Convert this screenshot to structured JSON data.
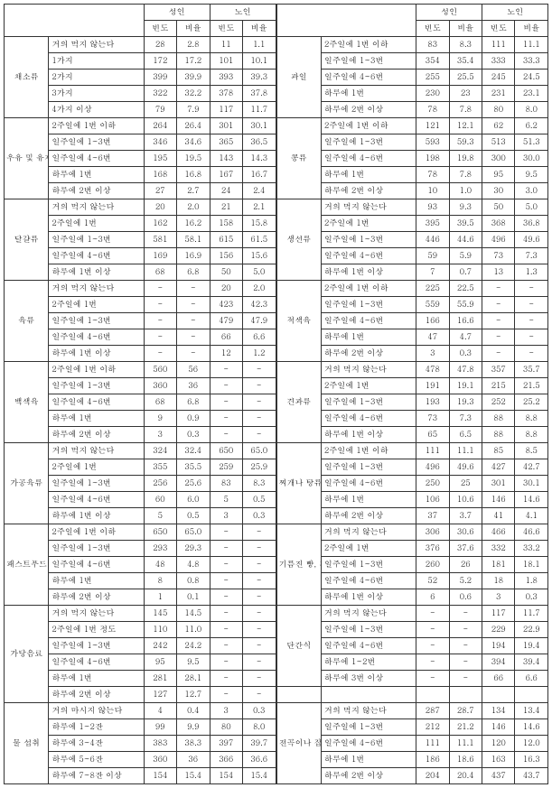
{
  "headers": {
    "adult": "성인",
    "elderly": "노인",
    "freq": "빈도",
    "ratio": "비율"
  },
  "L": [
    {
      "cat": "채소류",
      "rows": [
        {
          "l": "거의 먹지 않는다",
          "v": [
            "28",
            "2.8",
            "11",
            "1.1"
          ]
        },
        {
          "l": "1가지",
          "v": [
            "172",
            "17.2",
            "101",
            "10.1"
          ]
        },
        {
          "l": "2가지",
          "v": [
            "399",
            "39.9",
            "393",
            "39.3"
          ]
        },
        {
          "l": "3가지",
          "v": [
            "322",
            "32.2",
            "378",
            "37.8"
          ]
        },
        {
          "l": "4가지 이상",
          "v": [
            "79",
            "7.9",
            "117",
            "11.7"
          ]
        }
      ]
    },
    {
      "cat": "우유 및 유제품",
      "rows": [
        {
          "l": "2주일에 1번 이하",
          "v": [
            "264",
            "26.4",
            "301",
            "30.1"
          ]
        },
        {
          "l": "일주일에 1~3번",
          "v": [
            "346",
            "34.6",
            "365",
            "36.5"
          ]
        },
        {
          "l": "일주일에 4~6번",
          "v": [
            "195",
            "19.5",
            "143",
            "14.3"
          ]
        },
        {
          "l": "하루에 1번",
          "v": [
            "168",
            "16.8",
            "167",
            "16.7"
          ]
        },
        {
          "l": "하루에 2번 이상",
          "v": [
            "27",
            "2.7",
            "24",
            "2.4"
          ]
        }
      ]
    },
    {
      "cat": "달걀류",
      "rows": [
        {
          "l": "거의 먹지 않는다",
          "v": [
            "20",
            "2.0",
            "21",
            "2.1"
          ]
        },
        {
          "l": "2주일에 1번",
          "v": [
            "162",
            "16.2",
            "158",
            "15.8"
          ]
        },
        {
          "l": "일주일에 1~3번",
          "v": [
            "581",
            "58.1",
            "615",
            "61.5"
          ]
        },
        {
          "l": "일주일에 4~6번",
          "v": [
            "169",
            "16.9",
            "156",
            "15.6"
          ]
        },
        {
          "l": "하루에 1번 이상",
          "v": [
            "68",
            "6.8",
            "50",
            "5.0"
          ]
        }
      ]
    },
    {
      "cat": "육류",
      "rows": [
        {
          "l": "거의 먹지 않는다",
          "v": [
            "-",
            "-",
            "20",
            "2.0"
          ]
        },
        {
          "l": "2주일에 1번",
          "v": [
            "-",
            "-",
            "423",
            "42.3"
          ]
        },
        {
          "l": "일주일에 1~3번",
          "v": [
            "-",
            "-",
            "479",
            "47.9"
          ]
        },
        {
          "l": "일주일에 4~6번",
          "v": [
            "-",
            "-",
            "66",
            "6.6"
          ]
        },
        {
          "l": "하루에 1번 이상",
          "v": [
            "-",
            "-",
            "12",
            "1.2"
          ]
        }
      ]
    },
    {
      "cat": "백색육",
      "rows": [
        {
          "l": "2주일에 1번 이하",
          "v": [
            "560",
            "56",
            "-",
            "-"
          ]
        },
        {
          "l": "일주일에 1~3번",
          "v": [
            "360",
            "36",
            "-",
            "-"
          ]
        },
        {
          "l": "일주일에 4~6번",
          "v": [
            "68",
            "6.8",
            "-",
            "-"
          ]
        },
        {
          "l": "하루에 1번",
          "v": [
            "9",
            "0.9",
            "-",
            "-"
          ]
        },
        {
          "l": "하루에 2번 이상",
          "v": [
            "3",
            "0.3",
            "-",
            "-"
          ]
        }
      ]
    },
    {
      "cat": "가공육류",
      "rows": [
        {
          "l": "거의 먹지 않는다",
          "v": [
            "324",
            "32.4",
            "650",
            "65.0"
          ]
        },
        {
          "l": "2주일에 1번",
          "v": [
            "355",
            "35.5",
            "259",
            "25.9"
          ]
        },
        {
          "l": "일주일에 1~3번",
          "v": [
            "256",
            "25.6",
            "83",
            "8.3"
          ]
        },
        {
          "l": "일주일에 4~6번",
          "v": [
            "60",
            "6.0",
            "5",
            "0.5"
          ]
        },
        {
          "l": "하루에 1번 이상",
          "v": [
            "5",
            "0.5",
            "3",
            "0.3"
          ]
        }
      ]
    },
    {
      "cat": "패스트푸드",
      "rows": [
        {
          "l": "2주일에 1번 이하",
          "v": [
            "650",
            "65.0",
            "-",
            "-"
          ]
        },
        {
          "l": "일주일에 1~3번",
          "v": [
            "293",
            "29.3",
            "-",
            "-"
          ]
        },
        {
          "l": "일주일에 4~6번",
          "v": [
            "48",
            "4.8",
            "-",
            "-"
          ]
        },
        {
          "l": "하루에 1번",
          "v": [
            "8",
            "0.8",
            "-",
            "-"
          ]
        },
        {
          "l": "하루에 2번 이상",
          "v": [
            "1",
            "0.1",
            "-",
            "-"
          ]
        }
      ]
    },
    {
      "cat": "가당음료",
      "rows": [
        {
          "l": "거의 먹지 않는다",
          "v": [
            "145",
            "14.5",
            "-",
            "-"
          ]
        },
        {
          "l": "2주일에 1번 정도",
          "v": [
            "110",
            "11.0",
            "-",
            "-"
          ]
        },
        {
          "l": "일주일에 1~3번",
          "v": [
            "242",
            "24.2",
            "-",
            "-"
          ]
        },
        {
          "l": "일주일에 4~6번",
          "v": [
            "95",
            "9.5",
            "-",
            "-"
          ]
        },
        {
          "l": "하루에 1번",
          "v": [
            "281",
            "28.1",
            "-",
            "-"
          ]
        },
        {
          "l": "하루에 2번 이상",
          "v": [
            "127",
            "12.7",
            "-",
            "-"
          ]
        }
      ]
    },
    {
      "cat": "물 섭취",
      "rows": [
        {
          "l": "거의 마시지 않는다",
          "v": [
            "4",
            "0.4",
            "3",
            "0.3"
          ]
        },
        {
          "l": "하루에 1~2잔",
          "v": [
            "99",
            "9.9",
            "80",
            "8.0"
          ]
        },
        {
          "l": "하루에 3~4잔",
          "v": [
            "383",
            "38.3",
            "397",
            "39.7"
          ]
        },
        {
          "l": "하루에 5~6잔",
          "v": [
            "360",
            "36",
            "366",
            "36.6"
          ]
        },
        {
          "l": "하루에 7~8잔 이상",
          "v": [
            "154",
            "15.4",
            "154",
            "15.4"
          ]
        }
      ]
    }
  ],
  "R": [
    {
      "cat": "과일",
      "rows": [
        {
          "l": "2주일에 1번 이하",
          "v": [
            "83",
            "8.3",
            "111",
            "11.1"
          ]
        },
        {
          "l": "일주일에 1~3번",
          "v": [
            "354",
            "35.4",
            "333",
            "33.3"
          ]
        },
        {
          "l": "일주일에 4~6번",
          "v": [
            "255",
            "25.5",
            "245",
            "24.5"
          ]
        },
        {
          "l": "하루에 1번",
          "v": [
            "230",
            "23",
            "231",
            "23.1"
          ]
        },
        {
          "l": "하루에 2번 이상",
          "v": [
            "78",
            "7.8",
            "80",
            "8.0"
          ]
        }
      ]
    },
    {
      "cat": "콩류",
      "rows": [
        {
          "l": "2주일에 1번 이하",
          "v": [
            "121",
            "12.1",
            "62",
            "6.2"
          ]
        },
        {
          "l": "일주일에 1~3번",
          "v": [
            "593",
            "59.3",
            "513",
            "51.3"
          ]
        },
        {
          "l": "일주일에 4~6번",
          "v": [
            "198",
            "19.8",
            "300",
            "30.0"
          ]
        },
        {
          "l": "하루에 1번",
          "v": [
            "78",
            "7.8",
            "95",
            "9.5"
          ]
        },
        {
          "l": "하루에 2번 이상",
          "v": [
            "10",
            "1.0",
            "30",
            "3.0"
          ]
        }
      ]
    },
    {
      "cat": "생선류",
      "rows": [
        {
          "l": "거의 먹지 않는다",
          "v": [
            "93",
            "9.3",
            "50",
            "5.0"
          ]
        },
        {
          "l": "2주일에 1번",
          "v": [
            "395",
            "39.5",
            "368",
            "36.8"
          ]
        },
        {
          "l": "일주일에 1~3번",
          "v": [
            "446",
            "44.6",
            "496",
            "49.6"
          ]
        },
        {
          "l": "일주일에 4~6번",
          "v": [
            "59",
            "5.9",
            "73",
            "7.3"
          ]
        },
        {
          "l": "하루에 1번 이상",
          "v": [
            "7",
            "0.7",
            "13",
            "1.3"
          ]
        }
      ]
    },
    {
      "cat": "적색육",
      "rows": [
        {
          "l": "2주일에 1번 이하",
          "v": [
            "225",
            "22.5",
            "-",
            "-"
          ]
        },
        {
          "l": "일주일에 1~3번",
          "v": [
            "559",
            "55.9",
            "-",
            "-"
          ]
        },
        {
          "l": "일주일에 4~6번",
          "v": [
            "166",
            "16.6",
            "-",
            "-"
          ]
        },
        {
          "l": "하루에 1번",
          "v": [
            "47",
            "4.7",
            "-",
            "-"
          ]
        },
        {
          "l": "하루에 2번 이상",
          "v": [
            "3",
            "0.3",
            "-",
            "-"
          ]
        }
      ]
    },
    {
      "cat": "견과류",
      "rows": [
        {
          "l": "거의 먹지 않는다",
          "v": [
            "478",
            "47.8",
            "357",
            "35.7"
          ]
        },
        {
          "l": "2주일에 1번",
          "v": [
            "191",
            "19.1",
            "215",
            "21.5"
          ]
        },
        {
          "l": "일주일에 1~3번",
          "v": [
            "193",
            "19.3",
            "252",
            "25.2"
          ]
        },
        {
          "l": "일주일에 4~6번",
          "v": [
            "73",
            "7.3",
            "88",
            "8.8"
          ]
        },
        {
          "l": "하루에 1번 이상",
          "v": [
            "65",
            "6.5",
            "88",
            "8.8"
          ]
        }
      ]
    },
    {
      "cat": "찌개나 탕류",
      "rows": [
        {
          "l": "2주일에 1번 이하",
          "v": [
            "111",
            "11.1",
            "85",
            "8.5"
          ]
        },
        {
          "l": "일주일에 1~3번",
          "v": [
            "496",
            "49.6",
            "427",
            "42.7"
          ]
        },
        {
          "l": "일주일에 4~6번",
          "v": [
            "250",
            "25",
            "301",
            "30.1"
          ]
        },
        {
          "l": "하루에 1번",
          "v": [
            "106",
            "10.6",
            "146",
            "14.6"
          ]
        },
        {
          "l": "하루에 2번 이상",
          "v": [
            "37",
            "3.7",
            "41",
            "4.1"
          ]
        }
      ]
    },
    {
      "cat": "기름진 빵, 과자류",
      "rows": [
        {
          "l": "거의 먹지 않는다",
          "v": [
            "306",
            "30.6",
            "466",
            "46.6"
          ]
        },
        {
          "l": "2주일에 1번",
          "v": [
            "376",
            "37.6",
            "332",
            "33.2"
          ]
        },
        {
          "l": "일주일에 1~3번",
          "v": [
            "260",
            "26",
            "181",
            "18.1"
          ]
        },
        {
          "l": "일주일에 4~6번",
          "v": [
            "52",
            "5.2",
            "18",
            "1.8"
          ]
        },
        {
          "l": "하루에 1번 이상",
          "v": [
            "6",
            "0.6",
            "3",
            "0.3"
          ]
        }
      ]
    },
    {
      "cat": "단간식",
      "rows": [
        {
          "l": "거의 먹지 않는다",
          "v": [
            "-",
            "-",
            "117",
            "11.7"
          ]
        },
        {
          "l": "일주일에 1~3번",
          "v": [
            "-",
            "-",
            "229",
            "22.9"
          ]
        },
        {
          "l": "일주일에 4~6번",
          "v": [
            "-",
            "-",
            "194",
            "19.4"
          ]
        },
        {
          "l": "하루에 1~2번",
          "v": [
            "-",
            "-",
            "394",
            "39.4"
          ]
        },
        {
          "l": "하루에 3번 이상",
          "v": [
            "-",
            "-",
            "66",
            "6.6"
          ]
        }
      ]
    },
    {
      "cat": "",
      "rows": [
        {
          "l": "",
          "v": [
            "",
            "",
            "",
            ""
          ]
        }
      ]
    },
    {
      "cat": "전곡이나 잡곡밥",
      "rows": [
        {
          "l": "거의 먹지 않는다",
          "v": [
            "287",
            "28.7",
            "134",
            "13.4"
          ]
        },
        {
          "l": "일주일에 1~3번",
          "v": [
            "212",
            "21.2",
            "146",
            "14.6"
          ]
        },
        {
          "l": "일주일에 4~6번",
          "v": [
            "111",
            "11.1",
            "120",
            "12.0"
          ]
        },
        {
          "l": "하루에 1번",
          "v": [
            "186",
            "18.6",
            "163",
            "16.3"
          ]
        },
        {
          "l": "하루에 2번 이상",
          "v": [
            "204",
            "20.4",
            "437",
            "43.7"
          ]
        }
      ]
    }
  ]
}
